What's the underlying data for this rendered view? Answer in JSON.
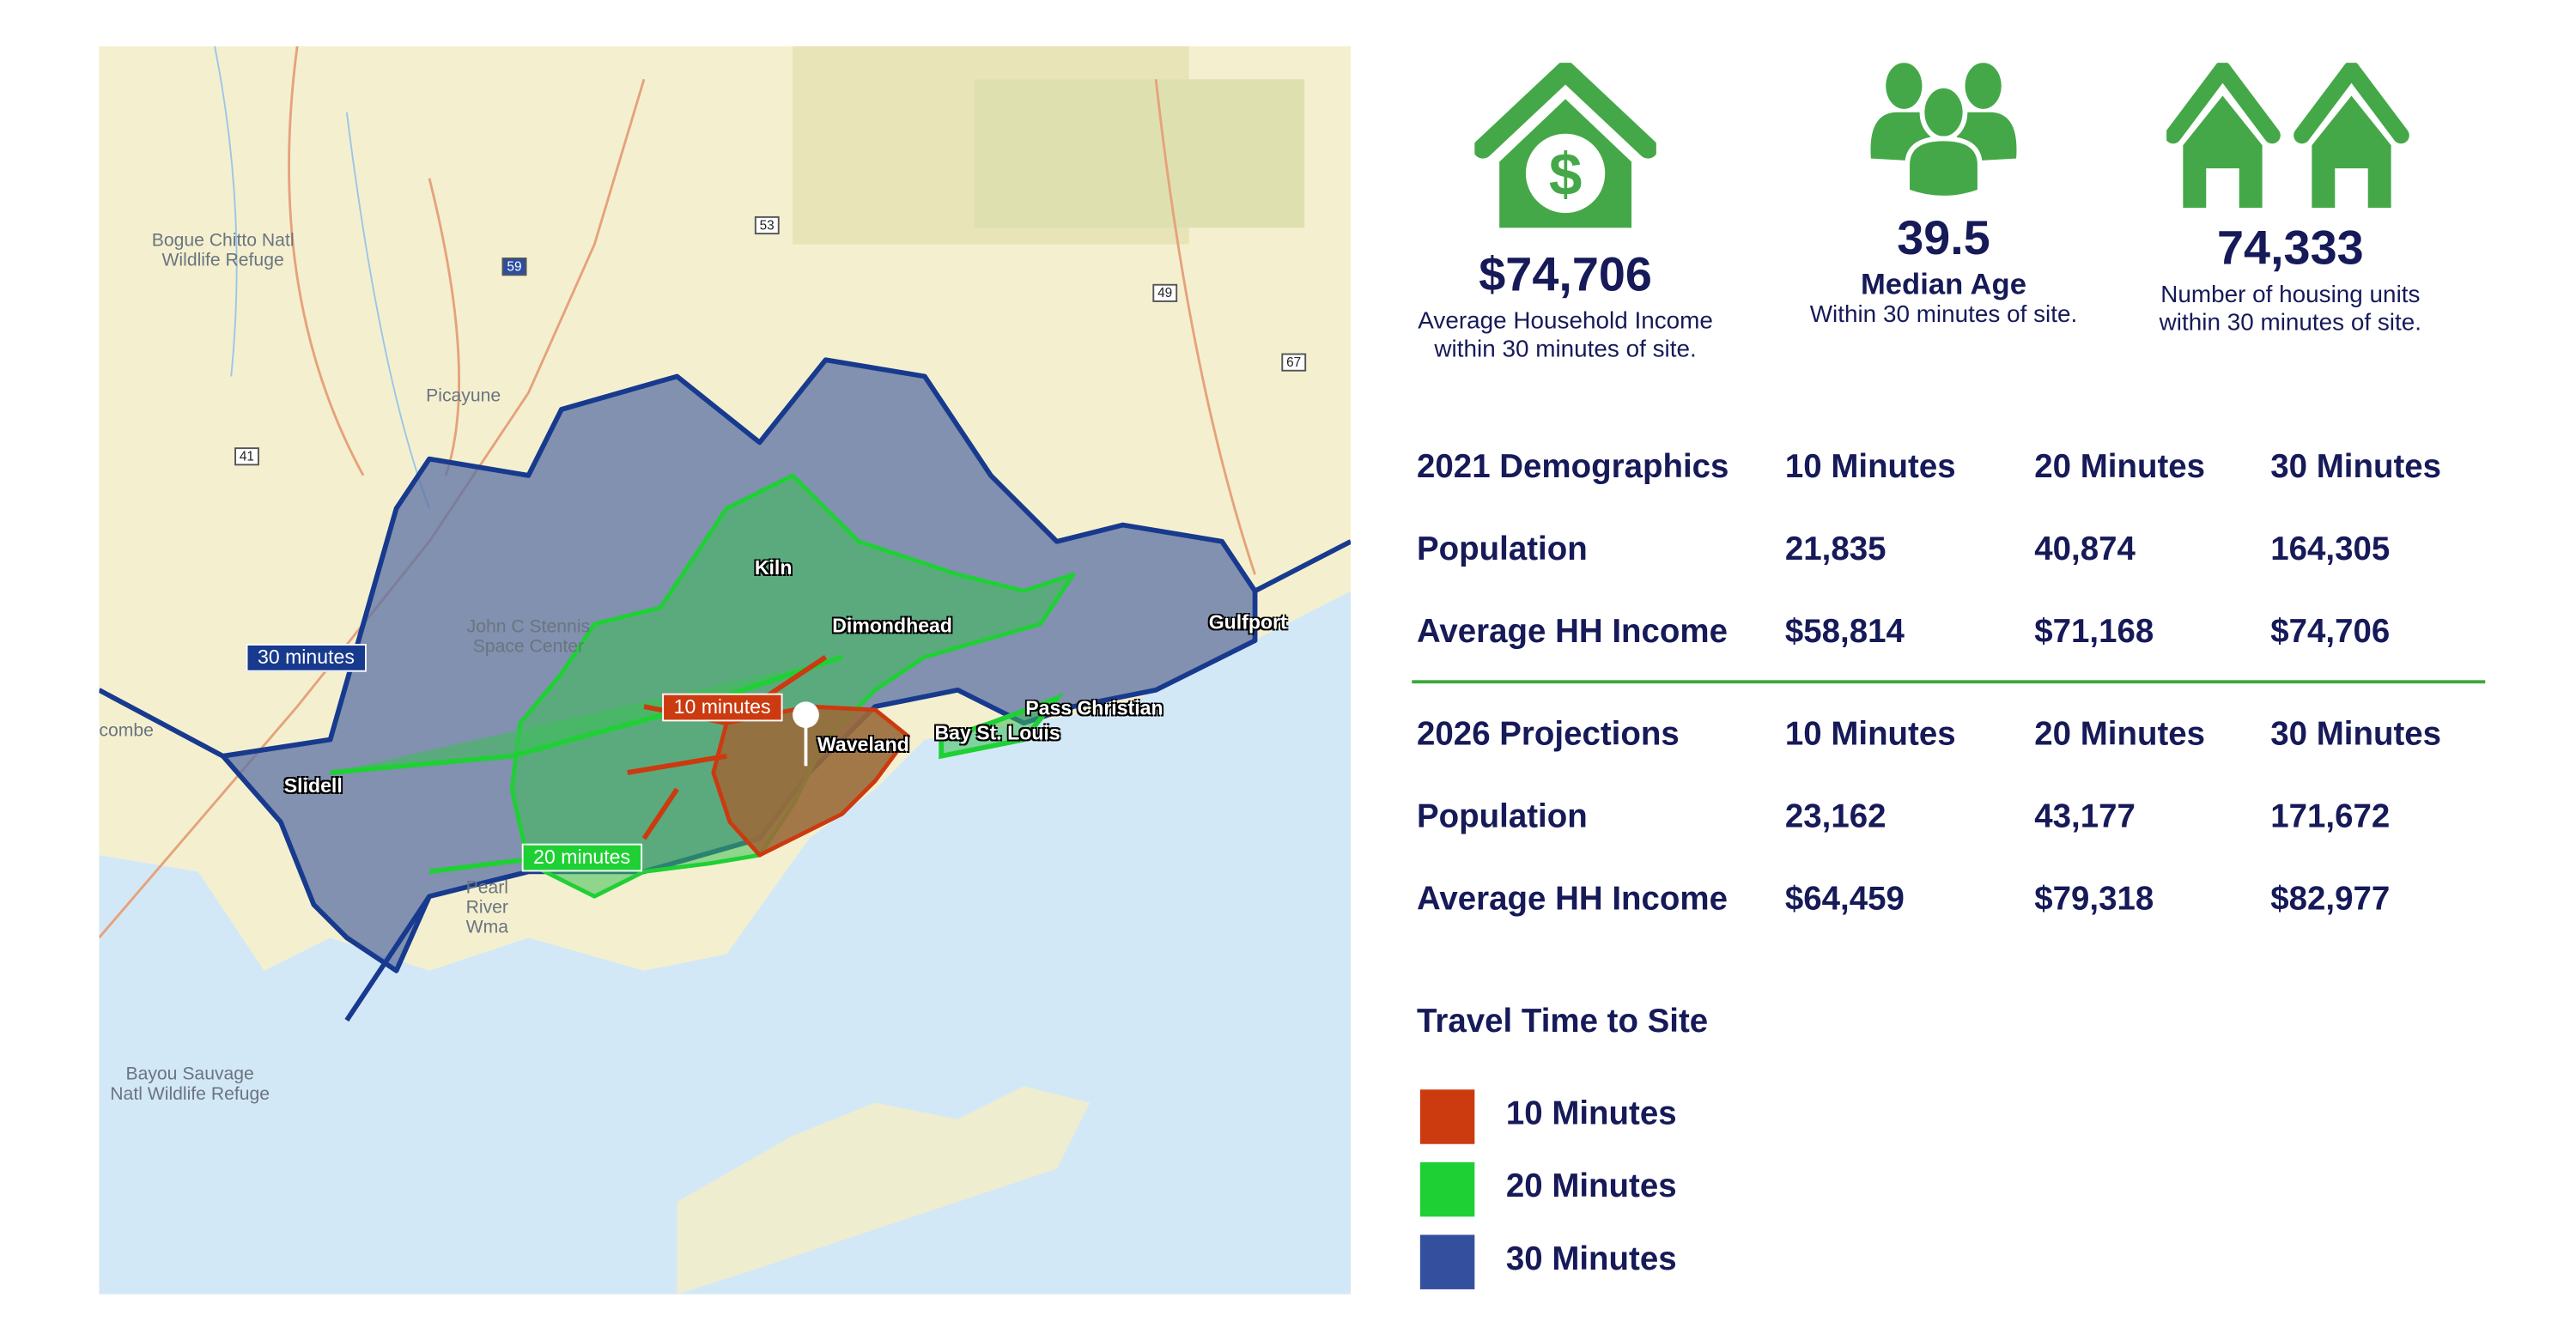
{
  "colors": {
    "navy": "#161a58",
    "icon_green": "#45a848",
    "ten": "#cc3a10",
    "twenty": "#1fd035",
    "thirty": "#344f9e"
  },
  "stats": [
    {
      "icon": "house-dollar-icon",
      "value": "$74,706",
      "label_line1": "Average Household Income",
      "label_line2": "within 30 minutes of site."
    },
    {
      "icon": "people-group-icon",
      "value": "39.5",
      "label_line1": "Median Age",
      "label_line2": "Within 30 minutes of site."
    },
    {
      "icon": "two-houses-icon",
      "value": "74,333",
      "label_line1": "Number of housing units",
      "label_line2": "within 30 minutes of site."
    }
  ],
  "demographics_2021": {
    "header": [
      "2021 Demographics",
      "10 Minutes",
      "20 Minutes",
      "30 Minutes"
    ],
    "rows": [
      [
        "Population",
        "21,835",
        "40,874",
        "164,305"
      ],
      [
        "Average HH Income",
        "$58,814",
        "$71,168",
        "$74,706"
      ]
    ]
  },
  "projections_2026": {
    "header": [
      "2026 Projections",
      "10 Minutes",
      "20 Minutes",
      "30 Minutes"
    ],
    "rows": [
      [
        "Population",
        "23,162",
        "43,177",
        "171,672"
      ],
      [
        "Average HH Income",
        "$64,459",
        "$79,318",
        "$82,977"
      ]
    ]
  },
  "legend": {
    "title": "Travel Time to Site",
    "items": [
      {
        "label": "10 Minutes",
        "color": "#cc3a10"
      },
      {
        "label": "20 Minutes",
        "color": "#1fd035"
      },
      {
        "label": "30 Minutes",
        "color": "#344f9e"
      }
    ]
  },
  "map": {
    "tags": {
      "ten": "10 minutes",
      "twenty": "20 minutes",
      "thirty": "30 minutes"
    },
    "cities": [
      "Kiln",
      "Dimondhead",
      "Gulfport",
      "Slidell",
      "Waveland",
      "Bay St. Louis",
      "Pass Christian"
    ],
    "places": [
      "Bogue Chitto Natl Wildlife Refuge",
      "Picayune",
      "John C Stennis Space Center",
      "Pearl River Wma",
      "Bayou Sauvage Natl Wildlife Refuge",
      "combe"
    ],
    "shields": [
      "53",
      "59",
      "49",
      "67",
      "41"
    ]
  }
}
